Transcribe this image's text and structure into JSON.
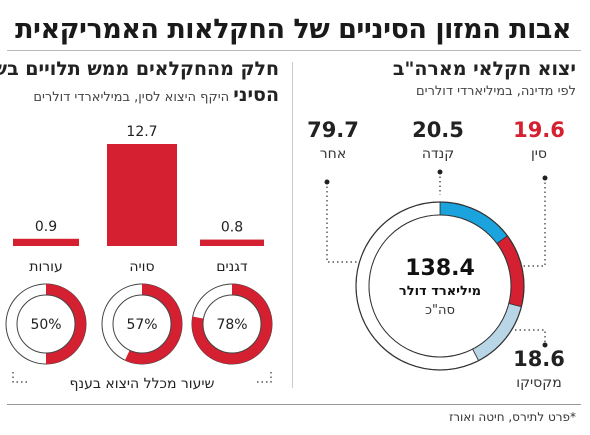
{
  "title": "אבות המזון הסיניים של החקלאות האמריקאית",
  "right_panel": {
    "title": "יצוא חקלאי מארה\"ב",
    "subtitle": "לפי מדינה, במיליארדי דולרים",
    "center_value": "138.4",
    "center_unit": "מיליארד דולר",
    "center_label": "סה\"כ"
  },
  "left_panel": {
    "title": "חלק מהחקלאים ממש תלויים בשוק",
    "title_bold": "הסיני",
    "subtitle": "היקף היצוא לסין, במיליארדי דולרים",
    "bracket_label": "שיעור מכלל היצוא בענף"
  },
  "footnote": "*פרט לתירס, חיטה ואורז",
  "colors": {
    "china": "#d42030",
    "canada": "#1aa3dc",
    "mexico": "#b8d6e6",
    "other": "#ffffff",
    "bar": "#d42030",
    "ring_bg": "#ffffff"
  },
  "chart_data": [
    {
      "type": "pie",
      "title": "יצוא חקלאי מארה\"ב",
      "total": 138.4,
      "labels": [
        "סין",
        "קנדה",
        "מקסיקו",
        "אחר"
      ],
      "values": [
        19.6,
        20.5,
        18.6,
        79.7
      ],
      "value_labels": [
        "19.6",
        "20.5",
        "18.6",
        "79.7"
      ]
    },
    {
      "type": "bar",
      "title": "היקף היצוא לסין, במיליארדי דולרים",
      "categories": [
        "דגנים",
        "סויה",
        "עורות"
      ],
      "values": [
        0.8,
        12.7,
        0.9
      ],
      "value_labels": [
        "0.8",
        "12.7",
        "0.9"
      ],
      "ylim": [
        0,
        12.7
      ]
    },
    {
      "type": "pie",
      "title": "שיעור מכלל היצוא בענף",
      "categories": [
        "דגנים",
        "סויה",
        "עורות"
      ],
      "values": [
        78,
        57,
        50
      ],
      "value_labels": [
        "78%",
        "57%",
        "50%"
      ]
    }
  ]
}
